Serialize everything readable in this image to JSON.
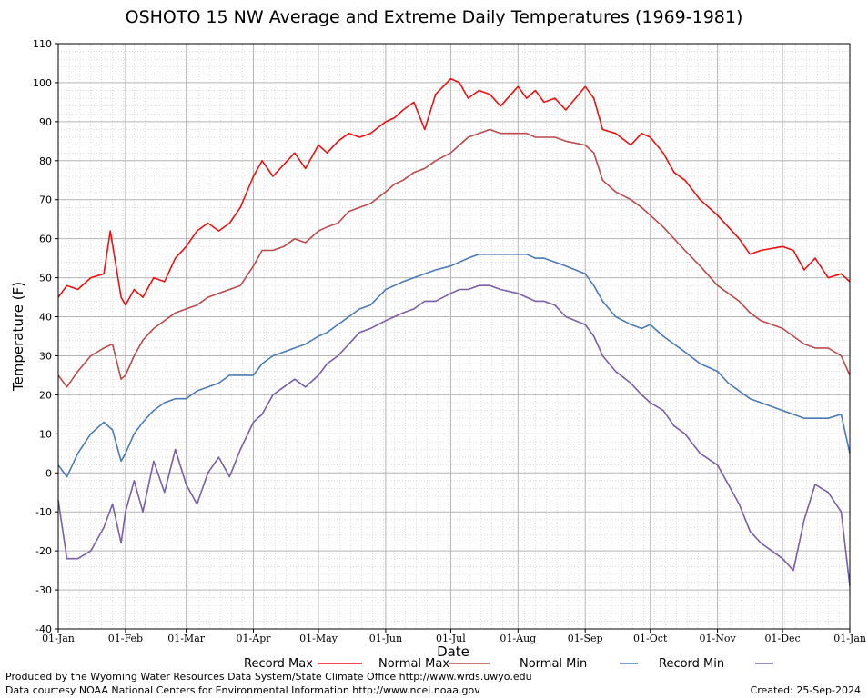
{
  "chart_data": {
    "type": "line",
    "title": "OSHOTO 15 NW Average and Extreme Daily Temperatures (1969-1981)",
    "xlabel": "Date",
    "ylabel": "Temperature (F)",
    "ylim": [
      -40,
      110
    ],
    "yticks": [
      -40,
      -30,
      -20,
      -10,
      0,
      10,
      20,
      30,
      40,
      50,
      60,
      70,
      80,
      90,
      100,
      110
    ],
    "xlim": [
      1,
      366
    ],
    "xticks": [
      {
        "label": "01-Jan",
        "day": 1
      },
      {
        "label": "01-Feb",
        "day": 32
      },
      {
        "label": "01-Mar",
        "day": 60
      },
      {
        "label": "01-Apr",
        "day": 91
      },
      {
        "label": "01-May",
        "day": 121
      },
      {
        "label": "01-Jun",
        "day": 152
      },
      {
        "label": "01-Jul",
        "day": 182
      },
      {
        "label": "01-Aug",
        "day": 213
      },
      {
        "label": "01-Sep",
        "day": 244
      },
      {
        "label": "01-Oct",
        "day": 274
      },
      {
        "label": "01-Nov",
        "day": 305
      },
      {
        "label": "01-Dec",
        "day": 335
      },
      {
        "label": "01-Jan",
        "day": 366
      }
    ],
    "grid": true,
    "legend_position": "bottom",
    "series": [
      {
        "name": "Record Max",
        "color": "#ee1111",
        "x": [
          1,
          5,
          10,
          16,
          22,
          25,
          30,
          32,
          36,
          40,
          45,
          50,
          55,
          60,
          65,
          70,
          75,
          80,
          85,
          91,
          95,
          100,
          105,
          110,
          115,
          121,
          125,
          130,
          135,
          140,
          145,
          152,
          156,
          160,
          165,
          170,
          175,
          182,
          186,
          190,
          195,
          200,
          205,
          213,
          217,
          221,
          225,
          230,
          235,
          244,
          248,
          252,
          258,
          265,
          270,
          274,
          280,
          285,
          290,
          297,
          305,
          310,
          315,
          320,
          325,
          335,
          340,
          345,
          350,
          356,
          362,
          366
        ],
        "y": [
          45,
          48,
          47,
          50,
          51,
          62,
          45,
          43,
          47,
          45,
          50,
          49,
          55,
          58,
          62,
          64,
          62,
          64,
          68,
          76,
          80,
          76,
          79,
          82,
          78,
          84,
          82,
          85,
          87,
          86,
          87,
          90,
          91,
          93,
          95,
          88,
          97,
          101,
          100,
          96,
          98,
          97,
          94,
          99,
          96,
          98,
          95,
          96,
          93,
          99,
          96,
          88,
          87,
          84,
          87,
          86,
          82,
          77,
          75,
          70,
          66,
          63,
          60,
          56,
          57,
          58,
          57,
          52,
          55,
          50,
          51,
          49
        ]
      },
      {
        "name": "Normal Max",
        "color": "#bb4a4a",
        "x": [
          1,
          5,
          10,
          16,
          22,
          26,
          30,
          32,
          36,
          40,
          45,
          50,
          55,
          60,
          65,
          70,
          75,
          80,
          85,
          91,
          95,
          100,
          105,
          110,
          115,
          121,
          125,
          130,
          135,
          140,
          145,
          152,
          156,
          160,
          165,
          170,
          175,
          182,
          186,
          190,
          195,
          200,
          205,
          213,
          217,
          221,
          225,
          230,
          235,
          244,
          248,
          252,
          258,
          265,
          270,
          274,
          280,
          285,
          290,
          297,
          305,
          310,
          315,
          320,
          325,
          335,
          340,
          345,
          350,
          356,
          362,
          366
        ],
        "y": [
          25,
          22,
          26,
          30,
          32,
          33,
          24,
          25,
          30,
          34,
          37,
          39,
          41,
          42,
          43,
          45,
          46,
          47,
          48,
          53,
          57,
          57,
          58,
          60,
          59,
          62,
          63,
          64,
          67,
          68,
          69,
          72,
          74,
          75,
          77,
          78,
          80,
          82,
          84,
          86,
          87,
          88,
          87,
          87,
          87,
          86,
          86,
          86,
          85,
          84,
          82,
          75,
          72,
          70,
          68,
          66,
          63,
          60,
          57,
          53,
          48,
          46,
          44,
          41,
          39,
          37,
          35,
          33,
          32,
          32,
          30,
          25
        ]
      },
      {
        "name": "Normal Min",
        "color": "#4a7ab8",
        "x": [
          1,
          5,
          10,
          16,
          22,
          26,
          30,
          32,
          36,
          40,
          45,
          50,
          55,
          60,
          65,
          70,
          75,
          80,
          85,
          91,
          95,
          100,
          105,
          110,
          115,
          121,
          125,
          130,
          135,
          140,
          145,
          152,
          156,
          160,
          165,
          170,
          175,
          182,
          186,
          190,
          195,
          200,
          205,
          213,
          217,
          221,
          225,
          230,
          235,
          244,
          248,
          252,
          258,
          265,
          270,
          274,
          280,
          285,
          290,
          297,
          305,
          310,
          315,
          320,
          325,
          335,
          340,
          345,
          350,
          356,
          362,
          366
        ],
        "y": [
          2,
          -1,
          5,
          10,
          13,
          11,
          3,
          5,
          10,
          13,
          16,
          18,
          19,
          19,
          21,
          22,
          23,
          25,
          25,
          25,
          28,
          30,
          31,
          32,
          33,
          35,
          36,
          38,
          40,
          42,
          43,
          47,
          48,
          49,
          50,
          51,
          52,
          53,
          54,
          55,
          56,
          56,
          56,
          56,
          56,
          55,
          55,
          54,
          53,
          51,
          48,
          44,
          40,
          38,
          37,
          38,
          35,
          33,
          31,
          28,
          26,
          23,
          21,
          19,
          18,
          16,
          15,
          14,
          14,
          14,
          15,
          5
        ]
      },
      {
        "name": "Record Min",
        "color": "#7a5ea8",
        "x": [
          1,
          5,
          10,
          16,
          22,
          26,
          30,
          32,
          36,
          40,
          45,
          50,
          55,
          60,
          65,
          70,
          75,
          80,
          85,
          91,
          95,
          100,
          105,
          110,
          115,
          121,
          125,
          130,
          135,
          140,
          145,
          152,
          156,
          160,
          165,
          170,
          175,
          182,
          186,
          190,
          195,
          200,
          205,
          213,
          217,
          221,
          225,
          230,
          235,
          244,
          248,
          252,
          258,
          265,
          270,
          274,
          280,
          285,
          290,
          297,
          305,
          310,
          315,
          320,
          325,
          335,
          340,
          345,
          350,
          356,
          362,
          366
        ],
        "y": [
          -7,
          -22,
          -22,
          -20,
          -14,
          -8,
          -18,
          -10,
          -2,
          -10,
          3,
          -5,
          6,
          -3,
          -8,
          0,
          4,
          -1,
          6,
          13,
          15,
          20,
          22,
          24,
          22,
          25,
          28,
          30,
          33,
          36,
          37,
          39,
          40,
          41,
          42,
          44,
          44,
          46,
          47,
          47,
          48,
          48,
          47,
          46,
          45,
          44,
          44,
          43,
          40,
          38,
          35,
          30,
          26,
          23,
          20,
          18,
          16,
          12,
          10,
          5,
          2,
          -3,
          -8,
          -15,
          -18,
          -22,
          -25,
          -12,
          -3,
          -5,
          -10,
          -29
        ]
      }
    ]
  },
  "footer": {
    "producer": "Produced by the Wyoming Water Resources Data System/State Climate Office http://www.wrds.uwyo.edu",
    "courtesy": "Data courtesy NOAA National Centers for Environmental Information http://www.ncei.noaa.gov",
    "created": "Created:  25-Sep-2024"
  }
}
